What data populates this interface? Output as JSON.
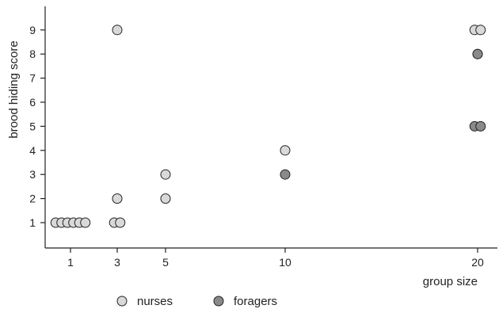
{
  "chart_data": {
    "type": "scatter",
    "xlabel": "group size",
    "ylabel": "brood hiding score",
    "x_ticks": [
      1,
      3,
      5,
      10,
      20
    ],
    "y_ticks": [
      1,
      2,
      3,
      4,
      5,
      6,
      7,
      8,
      9
    ],
    "grid": false,
    "legend_position": "bottom",
    "series": [
      {
        "name": "nurses",
        "color": "#d9d9d9",
        "points": [
          {
            "x": 1,
            "y": 1,
            "n": 6
          },
          {
            "x": 3,
            "y": 1,
            "n": 2
          },
          {
            "x": 3,
            "y": 2,
            "n": 1
          },
          {
            "x": 3,
            "y": 9,
            "n": 1
          },
          {
            "x": 5,
            "y": 2,
            "n": 1
          },
          {
            "x": 5,
            "y": 3,
            "n": 1
          },
          {
            "x": 10,
            "y": 4,
            "n": 1
          },
          {
            "x": 20,
            "y": 8,
            "n": 1
          },
          {
            "x": 20,
            "y": 9,
            "n": 2
          }
        ]
      },
      {
        "name": "foragers",
        "color": "#8a8a8a",
        "points": [
          {
            "x": 10,
            "y": 3,
            "n": 1
          },
          {
            "x": 20,
            "y": 5,
            "n": 2
          },
          {
            "x": 20,
            "y": 8,
            "n": 1
          }
        ]
      }
    ]
  }
}
